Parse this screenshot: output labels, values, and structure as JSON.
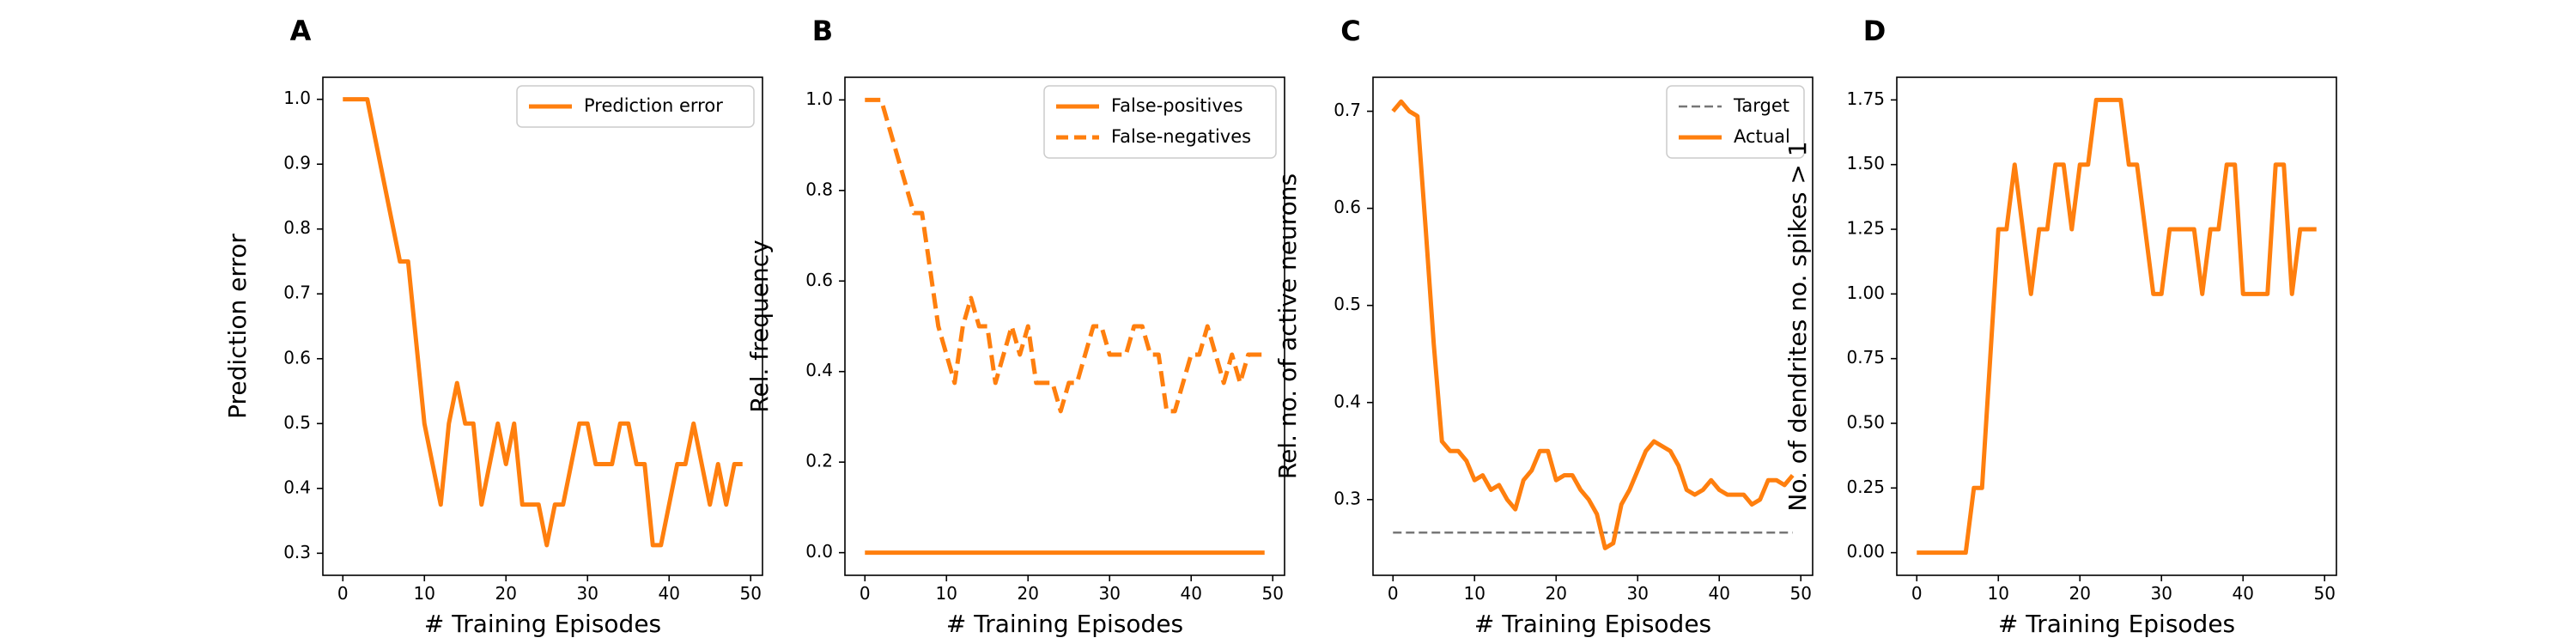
{
  "chart_data": [
    {
      "panel_label": "A",
      "type": "line",
      "xlabel": "# Training Episodes",
      "ylabel": "Prediction error",
      "xlim": [
        -2.45,
        51.45
      ],
      "ylim": [
        0.266,
        1.034
      ],
      "xticks": [
        0,
        10,
        20,
        30,
        40,
        50
      ],
      "yticks": [
        0.3,
        0.4,
        0.5,
        0.6,
        0.7,
        0.8,
        0.9,
        1.0
      ],
      "ytick_labels": [
        "0.3",
        "0.4",
        "0.5",
        "0.6",
        "0.7",
        "0.8",
        "0.9",
        "1.0"
      ],
      "legend": "top-right",
      "grid": false,
      "series": [
        {
          "name": "Prediction error",
          "color": "#ff7f0e",
          "style": "solid",
          "x": [
            0,
            1,
            2,
            3,
            4,
            5,
            6,
            7,
            8,
            9,
            10,
            11,
            12,
            13,
            14,
            15,
            16,
            17,
            18,
            19,
            20,
            21,
            22,
            23,
            24,
            25,
            26,
            27,
            28,
            29,
            30,
            31,
            32,
            33,
            34,
            35,
            36,
            37,
            38,
            39,
            40,
            41,
            42,
            43,
            44,
            45,
            46,
            47,
            48,
            49
          ],
          "y": [
            1.0,
            1.0,
            1.0,
            1.0,
            0.9375,
            0.875,
            0.8125,
            0.75,
            0.75,
            0.625,
            0.5,
            0.4375,
            0.375,
            0.5,
            0.5625,
            0.5,
            0.5,
            0.375,
            0.4375,
            0.5,
            0.4375,
            0.5,
            0.375,
            0.375,
            0.375,
            0.3125,
            0.375,
            0.375,
            0.4375,
            0.5,
            0.5,
            0.4375,
            0.4375,
            0.4375,
            0.5,
            0.5,
            0.4375,
            0.4375,
            0.3125,
            0.3125,
            0.375,
            0.4375,
            0.4375,
            0.5,
            0.4375,
            0.375,
            0.4375,
            0.375,
            0.4375,
            0.4375
          ]
        }
      ]
    },
    {
      "panel_label": "B",
      "type": "line",
      "xlabel": "# Training Episodes",
      "ylabel": "Rel. frequency",
      "xlim": [
        -2.45,
        51.45
      ],
      "ylim": [
        -0.05,
        1.05
      ],
      "xticks": [
        0,
        10,
        20,
        30,
        40,
        50
      ],
      "yticks": [
        0.0,
        0.2,
        0.4,
        0.6,
        0.8,
        1.0
      ],
      "ytick_labels": [
        "0.0",
        "0.2",
        "0.4",
        "0.6",
        "0.8",
        "1.0"
      ],
      "legend": "top-right",
      "grid": false,
      "series": [
        {
          "name": "False-positives",
          "color": "#ff7f0e",
          "style": "solid",
          "x": [
            0,
            49
          ],
          "y": [
            0.0,
            0.0
          ]
        },
        {
          "name": "False-negatives",
          "color": "#ff7f0e",
          "style": "dashed",
          "x": [
            0,
            1,
            2,
            3,
            4,
            5,
            6,
            7,
            8,
            9,
            10,
            11,
            12,
            13,
            14,
            15,
            16,
            17,
            18,
            19,
            20,
            21,
            22,
            23,
            24,
            25,
            26,
            27,
            28,
            29,
            30,
            31,
            32,
            33,
            34,
            35,
            36,
            37,
            38,
            39,
            40,
            41,
            42,
            43,
            44,
            45,
            46,
            47,
            48,
            49
          ],
          "y": [
            1.0,
            1.0,
            1.0,
            0.9375,
            0.875,
            0.8125,
            0.75,
            0.75,
            0.625,
            0.5,
            0.4375,
            0.375,
            0.5,
            0.5625,
            0.5,
            0.5,
            0.375,
            0.4375,
            0.5,
            0.4375,
            0.5,
            0.375,
            0.375,
            0.375,
            0.3125,
            0.375,
            0.375,
            0.4375,
            0.5,
            0.5,
            0.4375,
            0.4375,
            0.4375,
            0.5,
            0.5,
            0.4375,
            0.4375,
            0.3125,
            0.3125,
            0.375,
            0.4375,
            0.4375,
            0.5,
            0.4375,
            0.375,
            0.4375,
            0.375,
            0.4375,
            0.4375,
            0.4375
          ]
        }
      ]
    },
    {
      "panel_label": "C",
      "type": "line",
      "xlabel": "# Training Episodes",
      "ylabel": "Rel. no. of active neurons",
      "xlim": [
        -2.45,
        51.45
      ],
      "ylim": [
        0.222,
        0.735
      ],
      "xticks": [
        0,
        10,
        20,
        30,
        40,
        50
      ],
      "yticks": [
        0.3,
        0.4,
        0.5,
        0.6,
        0.7
      ],
      "ytick_labels": [
        "0.3",
        "0.4",
        "0.5",
        "0.6",
        "0.7"
      ],
      "legend": "top-right",
      "grid": false,
      "series": [
        {
          "name": "Target",
          "color": "#777777",
          "style": "dashed",
          "x": [
            0,
            49
          ],
          "y": [
            0.266,
            0.266
          ]
        },
        {
          "name": "Actual",
          "color": "#ff7f0e",
          "style": "solid",
          "x": [
            0,
            1,
            2,
            3,
            4,
            5,
            6,
            7,
            8,
            9,
            10,
            11,
            12,
            13,
            14,
            15,
            16,
            17,
            18,
            19,
            20,
            21,
            22,
            23,
            24,
            25,
            26,
            27,
            28,
            29,
            30,
            31,
            32,
            33,
            34,
            35,
            36,
            37,
            38,
            39,
            40,
            41,
            42,
            43,
            44,
            45,
            46,
            47,
            48,
            49
          ],
          "y": [
            0.7,
            0.71,
            0.7,
            0.695,
            0.58,
            0.46,
            0.36,
            0.35,
            0.35,
            0.34,
            0.32,
            0.325,
            0.31,
            0.315,
            0.3,
            0.29,
            0.32,
            0.33,
            0.35,
            0.35,
            0.32,
            0.325,
            0.325,
            0.31,
            0.3,
            0.285,
            0.25,
            0.255,
            0.295,
            0.31,
            0.33,
            0.35,
            0.36,
            0.355,
            0.35,
            0.335,
            0.31,
            0.305,
            0.31,
            0.32,
            0.31,
            0.305,
            0.305,
            0.305,
            0.295,
            0.3,
            0.32,
            0.32,
            0.315,
            0.325
          ]
        }
      ]
    },
    {
      "panel_label": "D",
      "type": "line",
      "xlabel": "# Training Episodes",
      "ylabel": "No. of dendrites no. spikes > 1",
      "xlim": [
        -2.45,
        51.45
      ],
      "ylim": [
        -0.0875,
        1.8375
      ],
      "xticks": [
        0,
        10,
        20,
        30,
        40,
        50
      ],
      "yticks": [
        0.0,
        0.25,
        0.5,
        0.75,
        1.0,
        1.25,
        1.5,
        1.75
      ],
      "ytick_labels": [
        "0.00",
        "0.25",
        "0.50",
        "0.75",
        "1.00",
        "1.25",
        "1.50",
        "1.75"
      ],
      "legend": "none",
      "grid": false,
      "series": [
        {
          "color": "#ff7f0e",
          "style": "solid",
          "x": [
            0,
            1,
            2,
            3,
            4,
            5,
            6,
            7,
            8,
            9,
            10,
            11,
            12,
            13,
            14,
            15,
            16,
            17,
            18,
            19,
            20,
            21,
            22,
            23,
            24,
            25,
            26,
            27,
            28,
            29,
            30,
            31,
            32,
            33,
            34,
            35,
            36,
            37,
            38,
            39,
            40,
            41,
            42,
            43,
            44,
            45,
            46,
            47,
            48,
            49
          ],
          "y": [
            0,
            0,
            0,
            0,
            0,
            0,
            0,
            0.25,
            0.25,
            0.75,
            1.25,
            1.25,
            1.5,
            1.25,
            1.0,
            1.25,
            1.25,
            1.5,
            1.5,
            1.25,
            1.5,
            1.5,
            1.75,
            1.75,
            1.75,
            1.75,
            1.5,
            1.5,
            1.25,
            1.0,
            1.0,
            1.25,
            1.25,
            1.25,
            1.25,
            1.0,
            1.25,
            1.25,
            1.5,
            1.5,
            1.0,
            1.0,
            1.0,
            1.0,
            1.5,
            1.5,
            1.0,
            1.25,
            1.25,
            1.25
          ]
        }
      ]
    }
  ]
}
